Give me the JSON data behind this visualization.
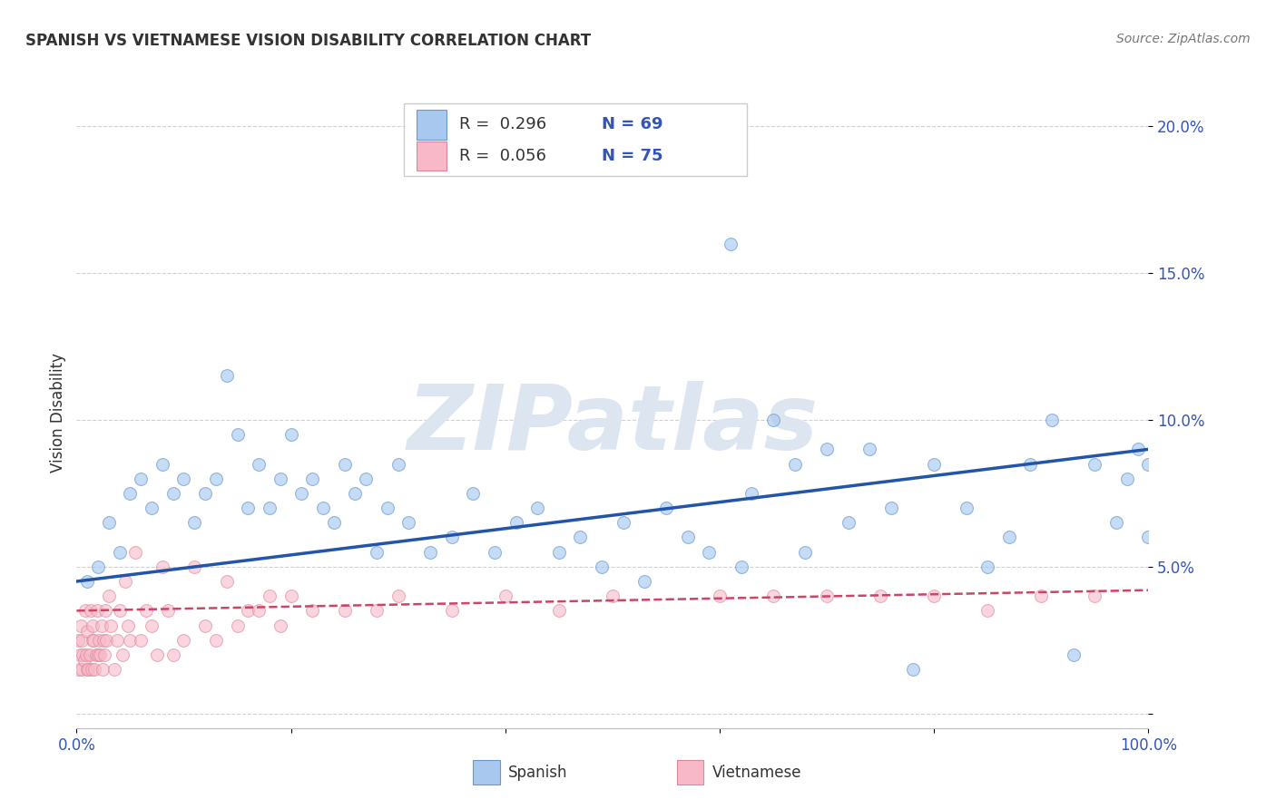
{
  "title": "SPANISH VS VIETNAMESE VISION DISABILITY CORRELATION CHART",
  "source": "Source: ZipAtlas.com",
  "ylabel": "Vision Disability",
  "xlim": [
    0,
    100
  ],
  "ylim": [
    -0.5,
    21
  ],
  "spanish_color": "#a8c8f0",
  "spanish_edge_color": "#6699cc",
  "vietnamese_color": "#f8b8c8",
  "vietnamese_edge_color": "#dd8899",
  "regression_spanish_color": "#2255aa",
  "regression_vietnamese_color": "#cc4466",
  "R_spanish": 0.296,
  "N_spanish": 69,
  "R_vietnamese": 0.056,
  "N_vietnamese": 75,
  "spanish_x": [
    1,
    2,
    3,
    4,
    5,
    6,
    7,
    8,
    9,
    10,
    11,
    12,
    13,
    14,
    15,
    16,
    17,
    18,
    19,
    20,
    21,
    22,
    23,
    24,
    25,
    26,
    27,
    28,
    29,
    30,
    31,
    33,
    35,
    37,
    39,
    41,
    43,
    45,
    47,
    49,
    51,
    53,
    55,
    57,
    59,
    61,
    62,
    63,
    65,
    67,
    68,
    70,
    72,
    74,
    76,
    78,
    80,
    83,
    85,
    87,
    89,
    91,
    93,
    95,
    97,
    98,
    99,
    100,
    100
  ],
  "spanish_y": [
    4.5,
    5.0,
    6.5,
    5.5,
    7.5,
    8.0,
    7.0,
    8.5,
    7.5,
    8.0,
    6.5,
    7.5,
    8.0,
    11.5,
    9.5,
    7.0,
    8.5,
    7.0,
    8.0,
    9.5,
    7.5,
    8.0,
    7.0,
    6.5,
    8.5,
    7.5,
    8.0,
    5.5,
    7.0,
    8.5,
    6.5,
    5.5,
    6.0,
    7.5,
    5.5,
    6.5,
    7.0,
    5.5,
    6.0,
    5.0,
    6.5,
    4.5,
    7.0,
    6.0,
    5.5,
    16.0,
    5.0,
    7.5,
    10.0,
    8.5,
    5.5,
    9.0,
    6.5,
    9.0,
    7.0,
    1.5,
    8.5,
    7.0,
    5.0,
    6.0,
    8.5,
    10.0,
    2.0,
    8.5,
    6.5,
    8.0,
    9.0,
    6.0,
    8.5
  ],
  "vietnamese_x": [
    0.1,
    0.2,
    0.3,
    0.4,
    0.5,
    0.5,
    0.6,
    0.7,
    0.8,
    0.9,
    1.0,
    1.0,
    1.1,
    1.2,
    1.3,
    1.4,
    1.5,
    1.5,
    1.6,
    1.7,
    1.8,
    1.9,
    2.0,
    2.1,
    2.2,
    2.3,
    2.4,
    2.5,
    2.6,
    2.7,
    2.8,
    3.0,
    3.2,
    3.5,
    3.8,
    4.0,
    4.3,
    4.5,
    4.8,
    5.0,
    5.5,
    6.0,
    6.5,
    7.0,
    7.5,
    8.0,
    8.5,
    9.0,
    10.0,
    11.0,
    12.0,
    13.0,
    14.0,
    15.0,
    16.0,
    17.0,
    18.0,
    19.0,
    20.0,
    22.0,
    25.0,
    28.0,
    30.0,
    35.0,
    40.0,
    45.0,
    50.0,
    60.0,
    65.0,
    70.0,
    75.0,
    80.0,
    85.0,
    90.0,
    95.0
  ],
  "vietnamese_y": [
    2.5,
    1.5,
    2.0,
    3.0,
    1.5,
    2.5,
    2.0,
    1.8,
    3.5,
    2.0,
    1.5,
    2.8,
    1.5,
    2.0,
    3.5,
    1.5,
    2.5,
    3.0,
    2.5,
    1.5,
    2.0,
    3.5,
    2.0,
    2.5,
    2.0,
    3.0,
    1.5,
    2.5,
    2.0,
    3.5,
    2.5,
    4.0,
    3.0,
    1.5,
    2.5,
    3.5,
    2.0,
    4.5,
    3.0,
    2.5,
    5.5,
    2.5,
    3.5,
    3.0,
    2.0,
    5.0,
    3.5,
    2.0,
    2.5,
    5.0,
    3.0,
    2.5,
    4.5,
    3.0,
    3.5,
    3.5,
    4.0,
    3.0,
    4.0,
    3.5,
    3.5,
    3.5,
    4.0,
    3.5,
    4.0,
    3.5,
    4.0,
    4.0,
    4.0,
    4.0,
    4.0,
    4.0,
    3.5,
    4.0,
    4.0
  ],
  "grid_color": "#cccccc",
  "background_color": "#ffffff",
  "watermark": "ZIPatlas",
  "watermark_color": "#dde6f0",
  "marker_size": 100,
  "alpha_spanish": 0.65,
  "alpha_vietnamese": 0.6,
  "label_color": "#3355bb",
  "text_color": "#333333"
}
